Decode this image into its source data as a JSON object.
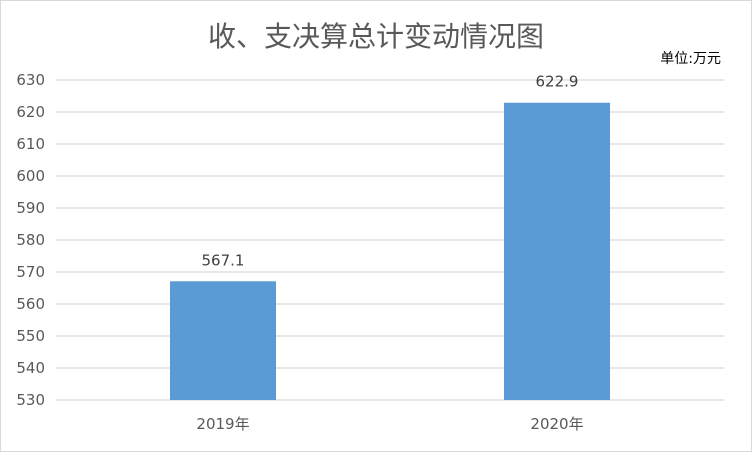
{
  "chart_data": {
    "type": "bar",
    "title": "收、支决算总计变动情况图",
    "unit_label": "单位:万元",
    "categories": [
      "2019年",
      "2020年"
    ],
    "values": [
      567.1,
      622.9
    ],
    "data_labels": [
      "567.1",
      "622.9"
    ],
    "ylim": [
      530,
      630
    ],
    "yticks": [
      530,
      540,
      550,
      560,
      570,
      580,
      590,
      600,
      610,
      620,
      630
    ],
    "grid": true,
    "bar_color": "#5b9bd5",
    "grid_color": "#d9d9d9"
  }
}
